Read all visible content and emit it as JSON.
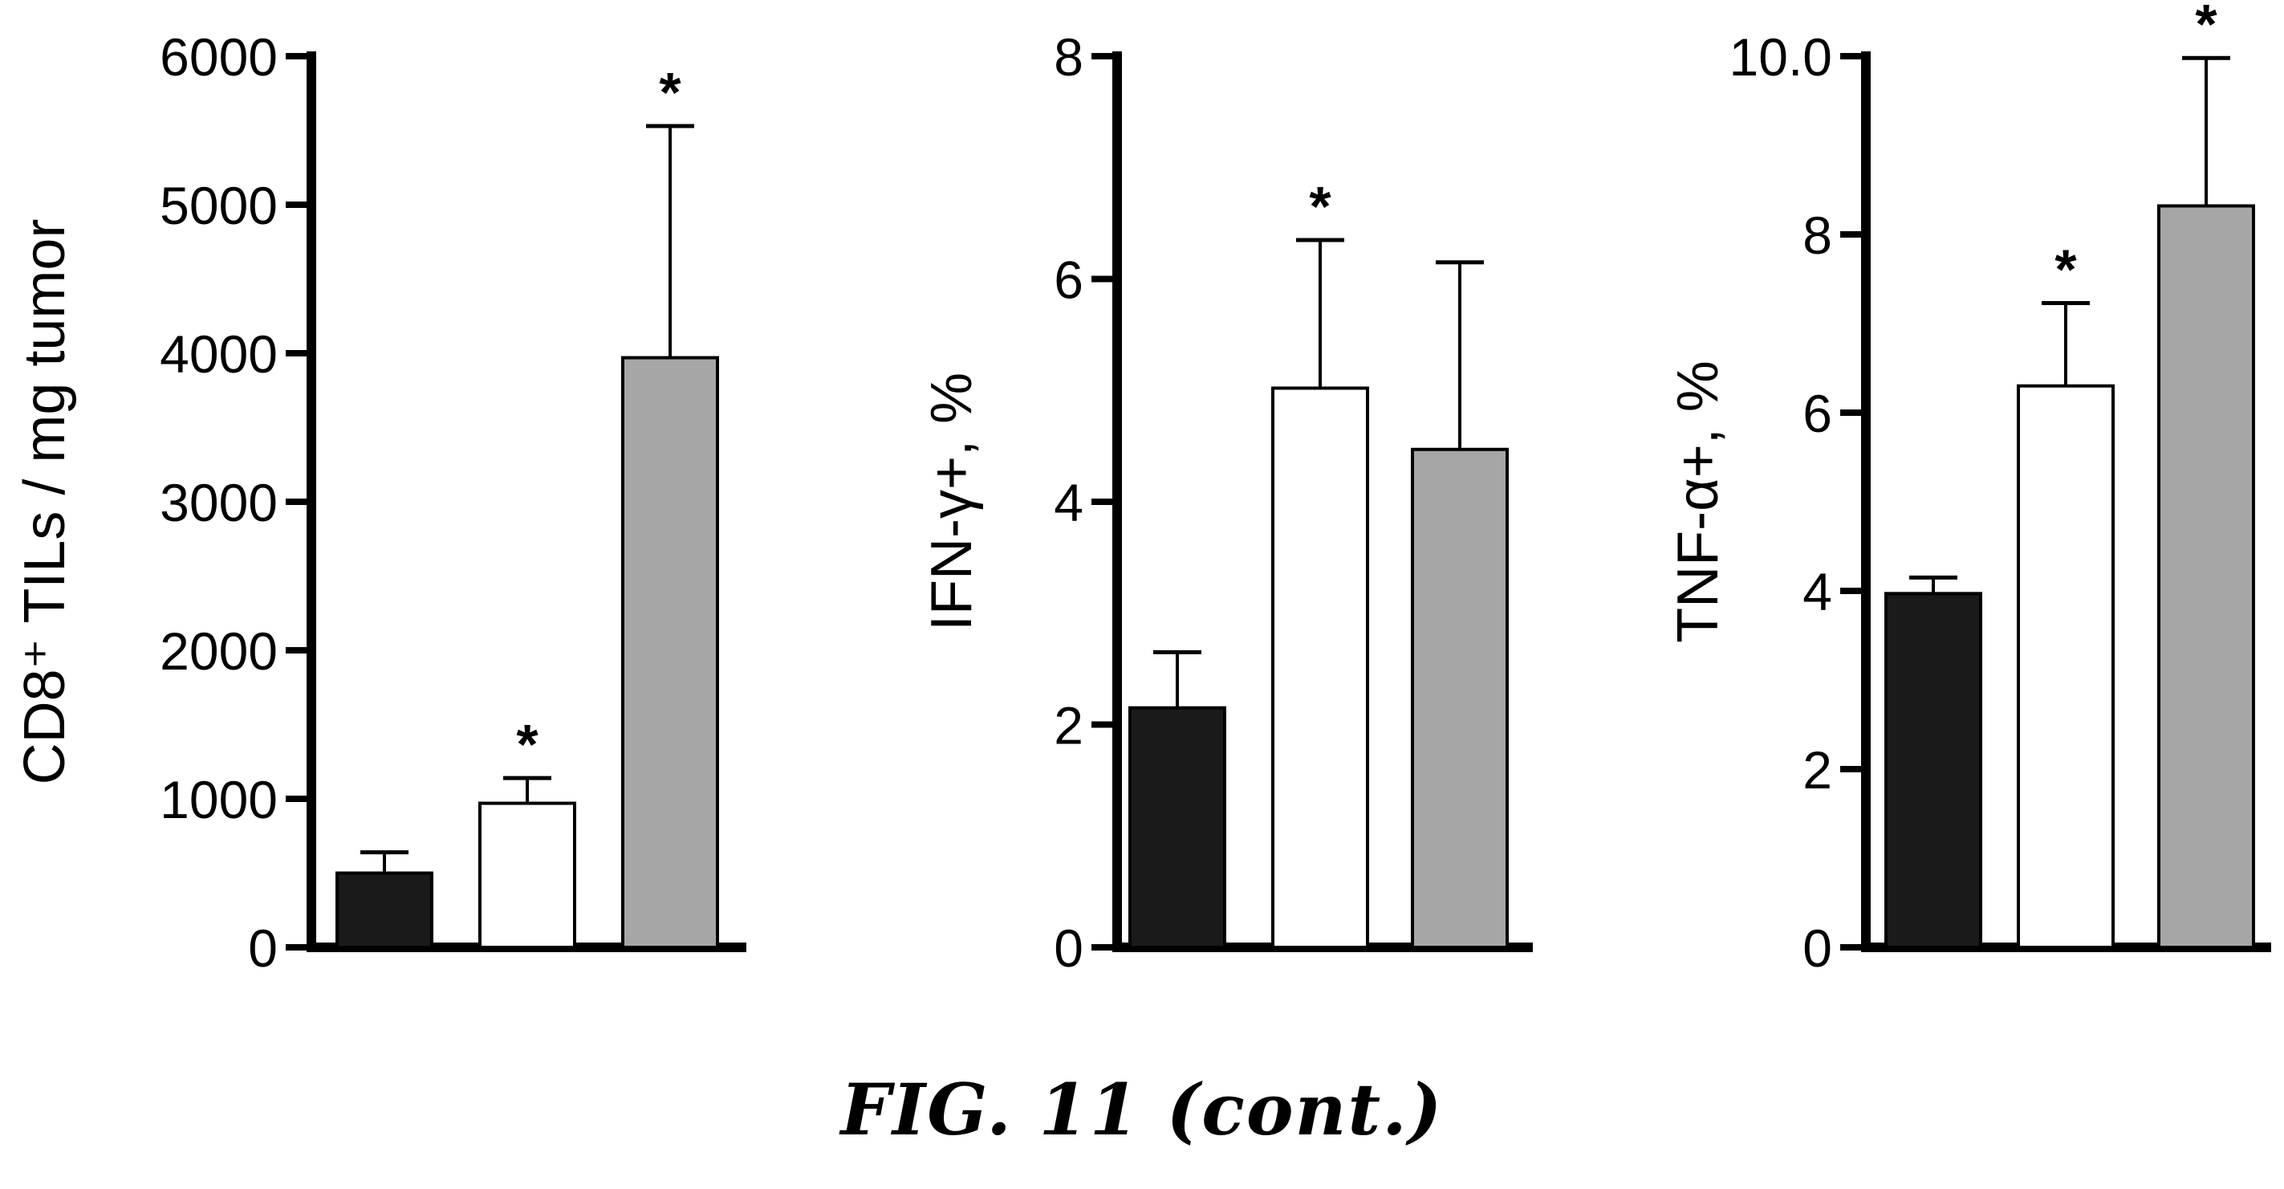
{
  "figure": {
    "caption": "FIG.  11 (cont.)"
  },
  "chart_data": [
    {
      "type": "bar",
      "ylabel": "CD8⁺ TILs / mg tumor",
      "ylim": [
        0,
        6000
      ],
      "yticks": [
        "0",
        "1000",
        "2000",
        "3000",
        "4000",
        "5000",
        "6000"
      ],
      "ytick_values": [
        0,
        1000,
        2000,
        3000,
        4000,
        5000,
        6000
      ],
      "bars": [
        {
          "value": 500,
          "error": 140,
          "color": "#1a1a1a",
          "star": ""
        },
        {
          "value": 970,
          "error": 170,
          "color": "#ffffff",
          "star": "*"
        },
        {
          "value": 3970,
          "error": 1560,
          "color": "#a6a6a6",
          "star": "*"
        }
      ]
    },
    {
      "type": "bar",
      "ylabel": "IFN-γ+, %",
      "ylim": [
        0,
        8
      ],
      "yticks": [
        "0",
        "2",
        "4",
        "6",
        "8"
      ],
      "ytick_values": [
        0,
        2,
        4,
        6,
        8
      ],
      "bars": [
        {
          "value": 2.15,
          "error": 0.5,
          "color": "#1a1a1a",
          "star": ""
        },
        {
          "value": 5.02,
          "error": 1.33,
          "color": "#ffffff",
          "star": "*"
        },
        {
          "value": 4.47,
          "error": 1.68,
          "color": "#a6a6a6",
          "star": ""
        }
      ]
    },
    {
      "type": "bar",
      "ylabel": "TNF-α+, %",
      "ylim": [
        0,
        10
      ],
      "yticks": [
        "0",
        "2",
        "4",
        "6",
        "8",
        "10.0"
      ],
      "ytick_values": [
        0,
        2,
        4,
        6,
        8,
        10
      ],
      "bars": [
        {
          "value": 3.97,
          "error": 0.18,
          "color": "#1a1a1a",
          "star": ""
        },
        {
          "value": 6.3,
          "error": 0.93,
          "color": "#ffffff",
          "star": "*"
        },
        {
          "value": 8.32,
          "error": 1.66,
          "color": "#a6a6a6",
          "star": "*"
        }
      ]
    }
  ]
}
